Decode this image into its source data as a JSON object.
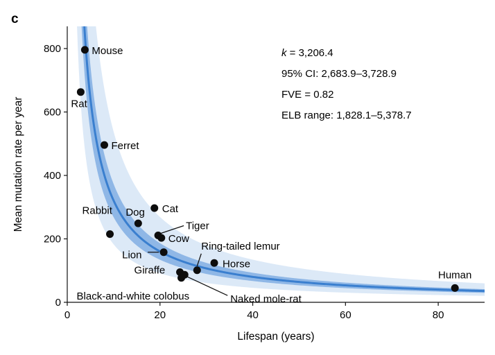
{
  "panel_label": "c",
  "chart_data": {
    "type": "scatter",
    "xlabel": "Lifespan (years)",
    "ylabel": "Mean mutation rate per year",
    "xlim": [
      0,
      90
    ],
    "ylim": [
      0,
      870
    ],
    "xticks": [
      0,
      20,
      40,
      60,
      80
    ],
    "yticks": [
      0,
      200,
      400,
      600,
      800
    ],
    "grid": false,
    "colors": {
      "fit_line": "#3a7fcf",
      "ci_band": "#8fb7e6",
      "elb_band": "#dce9f7",
      "points": "#0d0d0d"
    },
    "fit": {
      "model": "k / x",
      "k": 3206.4,
      "ci": [
        2683.9,
        3728.9
      ],
      "elb": [
        1828.1,
        5378.7
      ]
    },
    "annotations": [
      {
        "prefix": "k",
        "text": " = 3,206.4"
      },
      {
        "text": "95% CI: 2,683.9–3,728.9"
      },
      {
        "text": "FVE = 0.82"
      },
      {
        "text": "ELB range: 1,828.1–5,378.7"
      }
    ],
    "points": [
      {
        "label": "Mouse",
        "x": 3.8,
        "y": 796
      },
      {
        "label": "Rat",
        "x": 2.9,
        "y": 663
      },
      {
        "label": "Ferret",
        "x": 8,
        "y": 496
      },
      {
        "label": "Dog",
        "x": 15.3,
        "y": 249
      },
      {
        "label": "Cat",
        "x": 18.8,
        "y": 297
      },
      {
        "label": "Rabbit",
        "x": 9.2,
        "y": 215
      },
      {
        "label": "Tiger",
        "x": 19.6,
        "y": 211
      },
      {
        "label": "Cow",
        "x": 20.3,
        "y": 203
      },
      {
        "label": "Lion",
        "x": 20.8,
        "y": 158
      },
      {
        "label": "Ring-tailed lemur",
        "x": 28,
        "y": 101
      },
      {
        "label": "Horse",
        "x": 31.7,
        "y": 124
      },
      {
        "label": "Giraffe",
        "x": 24.3,
        "y": 95
      },
      {
        "label": "Black-and-white colobus",
        "x": 24.6,
        "y": 77
      },
      {
        "label": "Naked mole-rat",
        "x": 25.3,
        "y": 87
      },
      {
        "label": "Human",
        "x": 83.6,
        "y": 45
      }
    ]
  }
}
